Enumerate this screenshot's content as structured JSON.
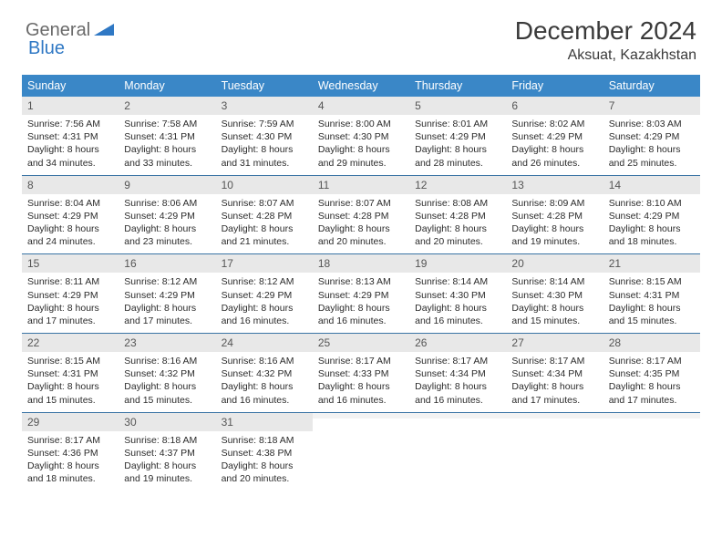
{
  "logo": {
    "text1": "General",
    "text2": "Blue"
  },
  "header": {
    "month_title": "December 2024",
    "location": "Aksuat, Kazakhstan"
  },
  "colors": {
    "dow_bg": "#3a87c7",
    "dow_fg": "#ffffff",
    "daynum_bg": "#e8e8e8",
    "week_border": "#3a74a5",
    "logo_gray": "#6a6a6a",
    "logo_blue": "#2f78c4"
  },
  "dow": [
    "Sunday",
    "Monday",
    "Tuesday",
    "Wednesday",
    "Thursday",
    "Friday",
    "Saturday"
  ],
  "weeks": [
    [
      {
        "n": "1",
        "sr": "Sunrise: 7:56 AM",
        "ss": "Sunset: 4:31 PM",
        "d1": "Daylight: 8 hours",
        "d2": "and 34 minutes."
      },
      {
        "n": "2",
        "sr": "Sunrise: 7:58 AM",
        "ss": "Sunset: 4:31 PM",
        "d1": "Daylight: 8 hours",
        "d2": "and 33 minutes."
      },
      {
        "n": "3",
        "sr": "Sunrise: 7:59 AM",
        "ss": "Sunset: 4:30 PM",
        "d1": "Daylight: 8 hours",
        "d2": "and 31 minutes."
      },
      {
        "n": "4",
        "sr": "Sunrise: 8:00 AM",
        "ss": "Sunset: 4:30 PM",
        "d1": "Daylight: 8 hours",
        "d2": "and 29 minutes."
      },
      {
        "n": "5",
        "sr": "Sunrise: 8:01 AM",
        "ss": "Sunset: 4:29 PM",
        "d1": "Daylight: 8 hours",
        "d2": "and 28 minutes."
      },
      {
        "n": "6",
        "sr": "Sunrise: 8:02 AM",
        "ss": "Sunset: 4:29 PM",
        "d1": "Daylight: 8 hours",
        "d2": "and 26 minutes."
      },
      {
        "n": "7",
        "sr": "Sunrise: 8:03 AM",
        "ss": "Sunset: 4:29 PM",
        "d1": "Daylight: 8 hours",
        "d2": "and 25 minutes."
      }
    ],
    [
      {
        "n": "8",
        "sr": "Sunrise: 8:04 AM",
        "ss": "Sunset: 4:29 PM",
        "d1": "Daylight: 8 hours",
        "d2": "and 24 minutes."
      },
      {
        "n": "9",
        "sr": "Sunrise: 8:06 AM",
        "ss": "Sunset: 4:29 PM",
        "d1": "Daylight: 8 hours",
        "d2": "and 23 minutes."
      },
      {
        "n": "10",
        "sr": "Sunrise: 8:07 AM",
        "ss": "Sunset: 4:28 PM",
        "d1": "Daylight: 8 hours",
        "d2": "and 21 minutes."
      },
      {
        "n": "11",
        "sr": "Sunrise: 8:07 AM",
        "ss": "Sunset: 4:28 PM",
        "d1": "Daylight: 8 hours",
        "d2": "and 20 minutes."
      },
      {
        "n": "12",
        "sr": "Sunrise: 8:08 AM",
        "ss": "Sunset: 4:28 PM",
        "d1": "Daylight: 8 hours",
        "d2": "and 20 minutes."
      },
      {
        "n": "13",
        "sr": "Sunrise: 8:09 AM",
        "ss": "Sunset: 4:28 PM",
        "d1": "Daylight: 8 hours",
        "d2": "and 19 minutes."
      },
      {
        "n": "14",
        "sr": "Sunrise: 8:10 AM",
        "ss": "Sunset: 4:29 PM",
        "d1": "Daylight: 8 hours",
        "d2": "and 18 minutes."
      }
    ],
    [
      {
        "n": "15",
        "sr": "Sunrise: 8:11 AM",
        "ss": "Sunset: 4:29 PM",
        "d1": "Daylight: 8 hours",
        "d2": "and 17 minutes."
      },
      {
        "n": "16",
        "sr": "Sunrise: 8:12 AM",
        "ss": "Sunset: 4:29 PM",
        "d1": "Daylight: 8 hours",
        "d2": "and 17 minutes."
      },
      {
        "n": "17",
        "sr": "Sunrise: 8:12 AM",
        "ss": "Sunset: 4:29 PM",
        "d1": "Daylight: 8 hours",
        "d2": "and 16 minutes."
      },
      {
        "n": "18",
        "sr": "Sunrise: 8:13 AM",
        "ss": "Sunset: 4:29 PM",
        "d1": "Daylight: 8 hours",
        "d2": "and 16 minutes."
      },
      {
        "n": "19",
        "sr": "Sunrise: 8:14 AM",
        "ss": "Sunset: 4:30 PM",
        "d1": "Daylight: 8 hours",
        "d2": "and 16 minutes."
      },
      {
        "n": "20",
        "sr": "Sunrise: 8:14 AM",
        "ss": "Sunset: 4:30 PM",
        "d1": "Daylight: 8 hours",
        "d2": "and 15 minutes."
      },
      {
        "n": "21",
        "sr": "Sunrise: 8:15 AM",
        "ss": "Sunset: 4:31 PM",
        "d1": "Daylight: 8 hours",
        "d2": "and 15 minutes."
      }
    ],
    [
      {
        "n": "22",
        "sr": "Sunrise: 8:15 AM",
        "ss": "Sunset: 4:31 PM",
        "d1": "Daylight: 8 hours",
        "d2": "and 15 minutes."
      },
      {
        "n": "23",
        "sr": "Sunrise: 8:16 AM",
        "ss": "Sunset: 4:32 PM",
        "d1": "Daylight: 8 hours",
        "d2": "and 15 minutes."
      },
      {
        "n": "24",
        "sr": "Sunrise: 8:16 AM",
        "ss": "Sunset: 4:32 PM",
        "d1": "Daylight: 8 hours",
        "d2": "and 16 minutes."
      },
      {
        "n": "25",
        "sr": "Sunrise: 8:17 AM",
        "ss": "Sunset: 4:33 PM",
        "d1": "Daylight: 8 hours",
        "d2": "and 16 minutes."
      },
      {
        "n": "26",
        "sr": "Sunrise: 8:17 AM",
        "ss": "Sunset: 4:34 PM",
        "d1": "Daylight: 8 hours",
        "d2": "and 16 minutes."
      },
      {
        "n": "27",
        "sr": "Sunrise: 8:17 AM",
        "ss": "Sunset: 4:34 PM",
        "d1": "Daylight: 8 hours",
        "d2": "and 17 minutes."
      },
      {
        "n": "28",
        "sr": "Sunrise: 8:17 AM",
        "ss": "Sunset: 4:35 PM",
        "d1": "Daylight: 8 hours",
        "d2": "and 17 minutes."
      }
    ],
    [
      {
        "n": "29",
        "sr": "Sunrise: 8:17 AM",
        "ss": "Sunset: 4:36 PM",
        "d1": "Daylight: 8 hours",
        "d2": "and 18 minutes."
      },
      {
        "n": "30",
        "sr": "Sunrise: 8:18 AM",
        "ss": "Sunset: 4:37 PM",
        "d1": "Daylight: 8 hours",
        "d2": "and 19 minutes."
      },
      {
        "n": "31",
        "sr": "Sunrise: 8:18 AM",
        "ss": "Sunset: 4:38 PM",
        "d1": "Daylight: 8 hours",
        "d2": "and 20 minutes."
      },
      {
        "empty": true
      },
      {
        "empty": true
      },
      {
        "empty": true
      },
      {
        "empty": true
      }
    ]
  ]
}
